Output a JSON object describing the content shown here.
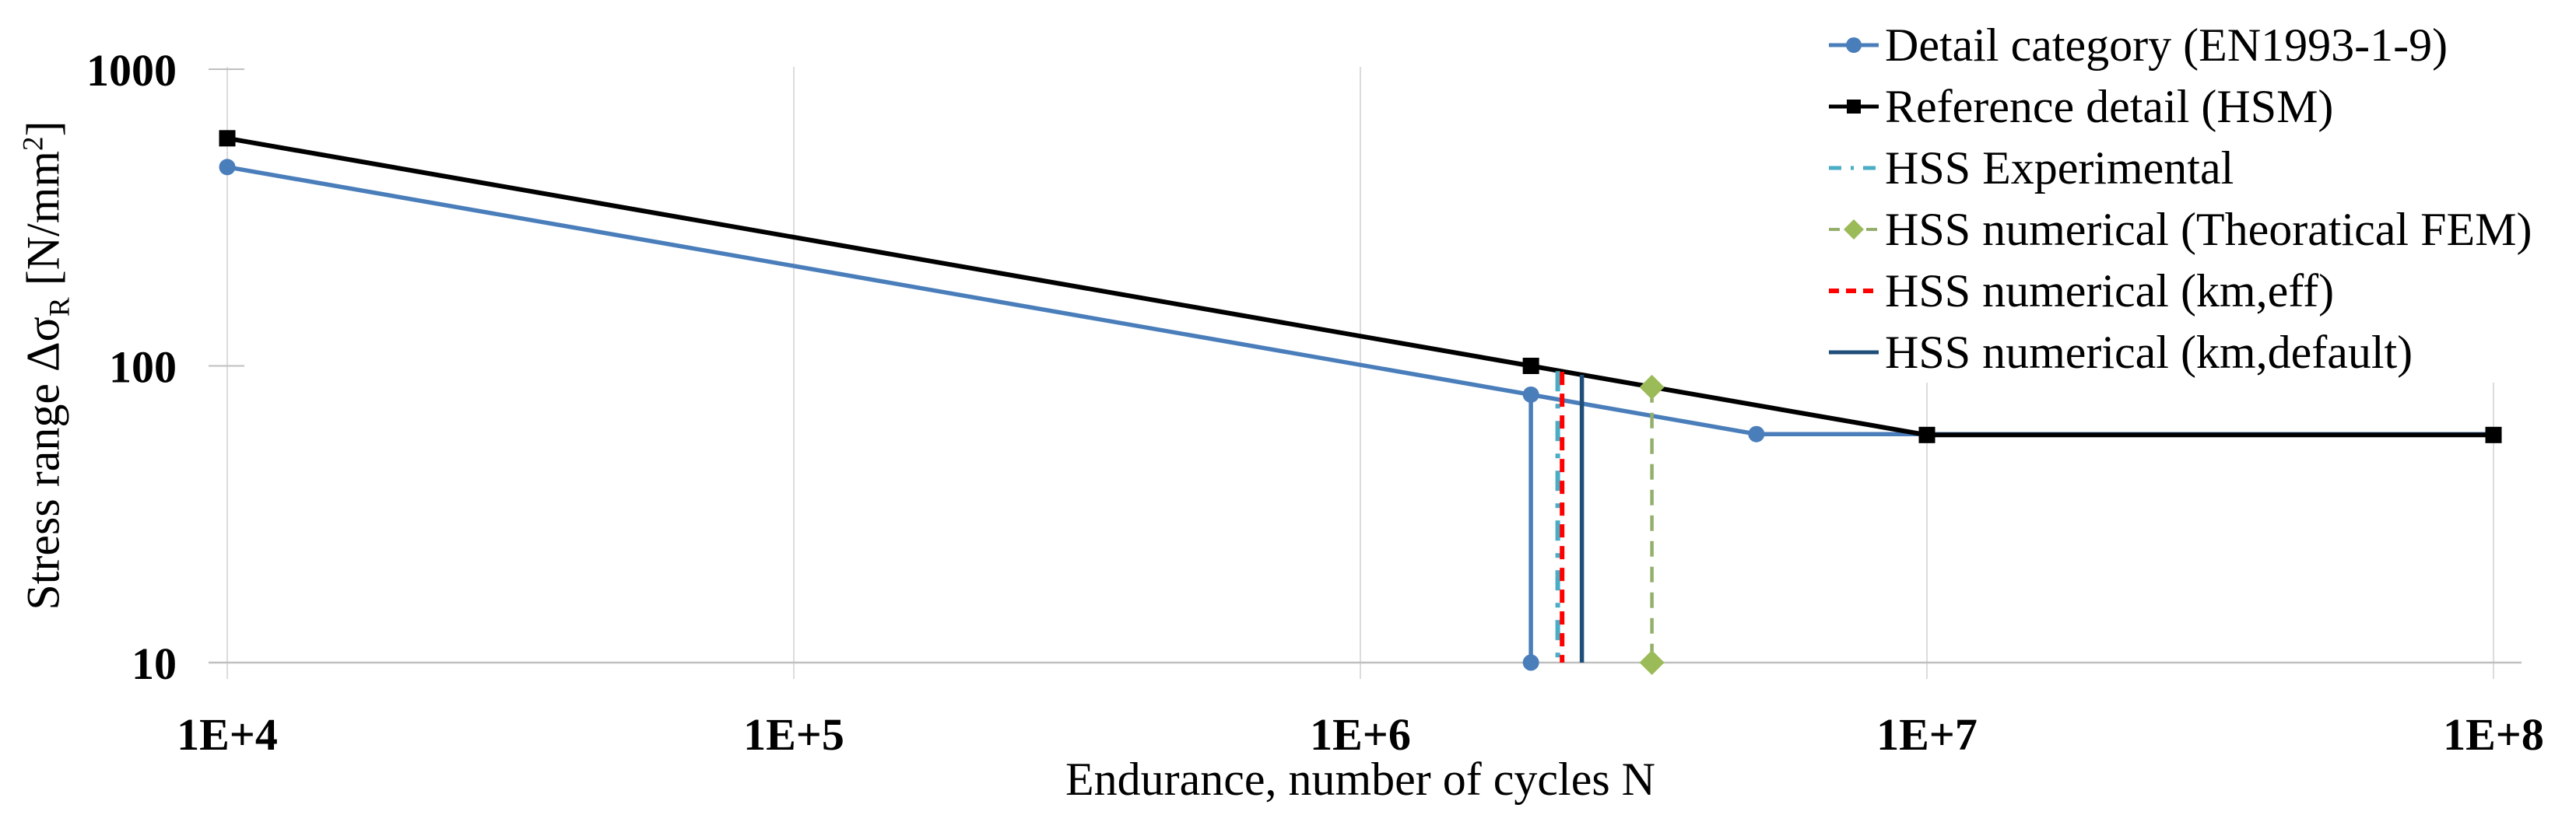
{
  "figure": {
    "background": "#ffffff",
    "axis_color": "#bfbfbf",
    "grid_color": "#dcdcdc"
  },
  "chart_data": {
    "type": "line",
    "title": "",
    "xlabel": "Endurance, number of cycles N",
    "ylabel_main": "Stress range Δσ",
    "ylabel_sub": "R",
    "ylabel_unit_pre": " [N/mm",
    "ylabel_sup": "2",
    "ylabel_unit_post": "]",
    "x_scale": "log",
    "y_scale": "log",
    "xlim": [
      10000,
      100000000
    ],
    "ylim": [
      10,
      1000
    ],
    "grid": "vertical-only",
    "legend_position": "top-right",
    "x_ticks": [
      {
        "v": 10000,
        "label": "1E+4"
      },
      {
        "v": 100000,
        "label": "1E+5"
      },
      {
        "v": 1000000,
        "label": "1E+6"
      },
      {
        "v": 10000000,
        "label": "1E+7"
      },
      {
        "v": 100000000,
        "label": "1E+8"
      }
    ],
    "y_ticks": [
      {
        "v": 10,
        "label": "10"
      },
      {
        "v": 100,
        "label": "100"
      },
      {
        "v": 1000,
        "label": "1000"
      }
    ],
    "series": [
      {
        "label": "Detail category (EN1993-1-9)",
        "color": "#4A7EBB",
        "width": 5.5,
        "dash": "",
        "marker": "circle",
        "marker_size": 10.5,
        "marker_color": "#4A7EBB",
        "segments": [
          [
            [
              10000,
              468
            ],
            [
              2000000,
              80
            ],
            [
              5000000,
              58.9
            ],
            [
              100000000,
              58.9
            ]
          ],
          [
            [
              2000000,
              80
            ],
            [
              2000000,
              10
            ]
          ]
        ],
        "markers": [
          [
            10000,
            468
          ],
          [
            2000000,
            80
          ],
          [
            5000000,
            58.9
          ],
          [
            2000000,
            10
          ]
        ]
      },
      {
        "label": "Reference detail (HSM)",
        "color": "#000000",
        "width": 6,
        "dash": "",
        "marker": "square",
        "marker_size": 21,
        "marker_color": "#000000",
        "segments": [
          [
            [
              10000,
              585
            ],
            [
              2000000,
              100
            ],
            [
              10000000,
              58.5
            ],
            [
              100000000,
              58.5
            ]
          ]
        ],
        "markers": [
          [
            10000,
            585
          ],
          [
            2000000,
            100
          ],
          [
            10000000,
            58.5
          ],
          [
            100000000,
            58.5
          ]
        ]
      },
      {
        "label": "HSS Experimental",
        "color": "#4AACC5",
        "width": 6,
        "dash": "26 16 6 16",
        "marker": "none",
        "marker_size": 0,
        "marker_color": "#4AACC5",
        "segments": [
          [
            [
              2230000,
              96
            ],
            [
              2230000,
              10
            ]
          ]
        ],
        "markers": []
      },
      {
        "label": "HSS numerical (Theoratical FEM)",
        "color": "#94AF6B",
        "width": 4.5,
        "dash": "20 13",
        "marker": "diamond",
        "marker_size": 16,
        "marker_color": "#9BBB59",
        "segments": [
          [
            [
              3270000,
              84.8
            ],
            [
              3270000,
              10
            ]
          ]
        ],
        "markers": [
          [
            3270000,
            84.8
          ],
          [
            3270000,
            10
          ]
        ]
      },
      {
        "label": "HSS numerical (km,eff)",
        "color": "#FF0000",
        "width": 6,
        "dash": "17 11",
        "marker": "none",
        "marker_size": 0,
        "marker_color": "#FF0000",
        "segments": [
          [
            [
              2270000,
              95.5
            ],
            [
              2270000,
              10
            ]
          ]
        ],
        "markers": []
      },
      {
        "label": "HSS numerical (km,default)",
        "color": "#1F4E79",
        "width": 5.5,
        "dash": "",
        "marker": "none",
        "marker_size": 0,
        "marker_color": "#1F4E79",
        "segments": [
          [
            [
              2460000,
              93.3
            ],
            [
              2460000,
              10
            ]
          ]
        ],
        "markers": []
      }
    ]
  }
}
